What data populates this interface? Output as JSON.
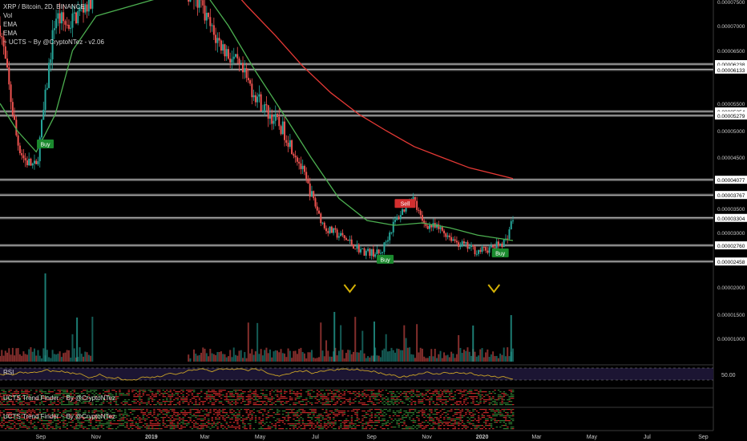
{
  "header": {
    "symbol_line": "XRP / Bitcoin, 2D, BINANCE",
    "indicators": [
      "Vol",
      "EMA",
      "EMA",
      "~ UCTS ~ By @CryptoNTez - v2.06"
    ]
  },
  "panes": {
    "rsi_label": "RSI",
    "rsi_value": "50.00",
    "trend1_label": "UCTS Trend Finder ~ By @CryptoNTez",
    "trend2_label": "UCTS Trend Finder ~ By @CryptoNTez"
  },
  "colors": {
    "up": "#26a69a",
    "down": "#ef5350",
    "ema_fast": "#4caf50",
    "ema_slow": "#e53935",
    "buy": "#1b8a2e",
    "sell": "#d32f2f",
    "arrow": "#d4b106",
    "rsi_band": "#1c1533"
  },
  "chart_data": {
    "type": "candlestick",
    "x_tick_labels": [
      "Sep",
      "Nov",
      "2019",
      "Mar",
      "May",
      "Jul",
      "Sep",
      "Nov",
      "2020",
      "Mar",
      "May",
      "Jul",
      "Sep"
    ],
    "price_axis_labels": [
      "0.00007500",
      "0.00007000",
      "0.00006500",
      "0.00006238",
      "0.00006133",
      "0.00005500",
      "0.00005354",
      "0.00005279",
      "0.00005000",
      "0.00004500",
      "0.00004077",
      "0.00003767",
      "0.00003500",
      "0.00003304",
      "0.00003000",
      "0.00002760",
      "0.00002458",
      "0.00002000",
      "0.00001500",
      "0.00001000"
    ],
    "horizontal_levels": [
      6.238e-05,
      6.133e-05,
      5.354e-05,
      5.279e-05,
      4.077e-05,
      3.767e-05,
      3.304e-05,
      2.76e-05,
      2.458e-05
    ],
    "price_path": [
      [
        "2018-08-01",
        7e-05
      ],
      [
        "2018-08-10",
        5.9e-05
      ],
      [
        "2018-08-20",
        4.8e-05
      ],
      [
        "2018-08-28",
        4.45e-05
      ],
      [
        "2018-09-10",
        4.3e-05
      ],
      [
        "2018-09-20",
        5.6e-05
      ],
      [
        "2018-10-01",
        7.2e-05
      ],
      [
        "2018-10-15",
        7e-05
      ],
      [
        "2018-11-10",
        7.6e-05
      ],
      [
        "2018-12-01",
        8e-05
      ],
      [
        "2019-02-01",
        8e-05
      ],
      [
        "2019-03-05",
        7.6e-05
      ],
      [
        "2019-03-25",
        6.8e-05
      ],
      [
        "2019-04-20",
        6.2e-05
      ],
      [
        "2019-05-20",
        5.4e-05
      ],
      [
        "2019-06-10",
        5e-05
      ],
      [
        "2019-06-25",
        4.5e-05
      ],
      [
        "2019-07-10",
        3.8e-05
      ],
      [
        "2019-07-25",
        3.1e-05
      ],
      [
        "2019-08-15",
        2.9e-05
      ],
      [
        "2019-09-05",
        2.65e-05
      ],
      [
        "2019-09-25",
        2.6e-05
      ],
      [
        "2019-10-10",
        3.2e-05
      ],
      [
        "2019-10-30",
        3.75e-05
      ],
      [
        "2019-11-10",
        3.2e-05
      ],
      [
        "2019-12-01",
        3.05e-05
      ],
      [
        "2019-12-20",
        2.8e-05
      ],
      [
        "2020-01-10",
        2.65e-05
      ],
      [
        "2020-01-25",
        2.7e-05
      ],
      [
        "2020-02-10",
        2.85e-05
      ],
      [
        "2020-02-18",
        3.3e-05
      ]
    ],
    "ema_fast": [
      [
        "2018-08-01",
        5.5e-05
      ],
      [
        "2018-08-20",
        5e-05
      ],
      [
        "2018-09-10",
        4.6e-05
      ],
      [
        "2018-10-01",
        5.3e-05
      ],
      [
        "2018-10-20",
        6.5e-05
      ],
      [
        "2018-11-15",
        7.2e-05
      ],
      [
        "2019-03-10",
        7.8e-05
      ],
      [
        "2019-04-10",
        7e-05
      ],
      [
        "2019-05-10",
        6.1e-05
      ],
      [
        "2019-06-10",
        5.3e-05
      ],
      [
        "2019-07-10",
        4.5e-05
      ],
      [
        "2019-08-10",
        3.7e-05
      ],
      [
        "2019-09-10",
        3.25e-05
      ],
      [
        "2019-10-10",
        3.15e-05
      ],
      [
        "2019-11-10",
        3.2e-05
      ],
      [
        "2019-12-10",
        3.1e-05
      ],
      [
        "2020-01-10",
        2.95e-05
      ],
      [
        "2020-02-18",
        2.85e-05
      ]
    ],
    "ema_slow": [
      [
        "2019-04-01",
        8e-05
      ],
      [
        "2019-05-01",
        7.4e-05
      ],
      [
        "2019-06-01",
        6.8e-05
      ],
      [
        "2019-07-01",
        6.2e-05
      ],
      [
        "2019-08-01",
        5.7e-05
      ],
      [
        "2019-09-01",
        5.3e-05
      ],
      [
        "2019-10-01",
        5e-05
      ],
      [
        "2019-11-01",
        4.7e-05
      ],
      [
        "2019-12-01",
        4.5e-05
      ],
      [
        "2020-01-01",
        4.3e-05
      ],
      [
        "2020-02-18",
        4.1e-05
      ]
    ],
    "signals": [
      {
        "date": "2018-09-20",
        "label": "Buy",
        "price": 4.75e-05,
        "side": "below"
      },
      {
        "date": "2019-10-22",
        "label": "Sell",
        "price": 3.6e-05,
        "side": "above"
      },
      {
        "date": "2019-09-30",
        "label": "Buy",
        "price": 2.5e-05,
        "side": "below"
      },
      {
        "date": "2020-02-04",
        "label": "Buy",
        "price": 2.62e-05,
        "side": "below"
      }
    ],
    "arrow_marks": [
      "2019-08-22",
      "2020-01-28"
    ]
  }
}
